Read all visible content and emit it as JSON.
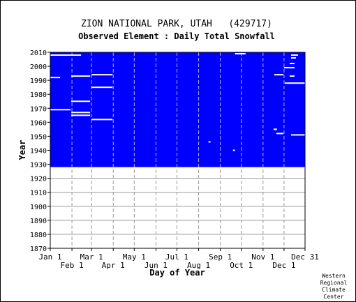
{
  "chart_data": {
    "type": "heatmap",
    "title": "ZION NATIONAL PARK, UTAH   (429717)",
    "subtitle": "Observed Element : Daily Total Snowfall",
    "xlabel": "Day of Year",
    "ylabel": "Year",
    "credit": [
      "Western",
      "Regional",
      "Climate",
      "Center"
    ],
    "xlim": [
      1,
      365
    ],
    "ylim": [
      1870,
      2010
    ],
    "x_ticks": [
      {
        "label": "Jan 1",
        "day": 1,
        "row": 0
      },
      {
        "label": "Feb 1",
        "day": 32,
        "row": 1
      },
      {
        "label": "Mar 1",
        "day": 60,
        "row": 0
      },
      {
        "label": "Apr 1",
        "day": 91,
        "row": 1
      },
      {
        "label": "May 1",
        "day": 121,
        "row": 0
      },
      {
        "label": "Jun 1",
        "day": 152,
        "row": 1
      },
      {
        "label": "Jul 1",
        "day": 182,
        "row": 0
      },
      {
        "label": "Aug 1",
        "day": 213,
        "row": 1
      },
      {
        "label": "Sep 1",
        "day": 244,
        "row": 0
      },
      {
        "label": "Oct 1",
        "day": 274,
        "row": 1
      },
      {
        "label": "Nov 1",
        "day": 305,
        "row": 0
      },
      {
        "label": "Dec 1",
        "day": 335,
        "row": 1
      },
      {
        "label": "Dec 31",
        "day": 365,
        "row": 0
      }
    ],
    "y_ticks": [
      1870,
      1880,
      1890,
      1900,
      1910,
      1920,
      1930,
      1940,
      1950,
      1960,
      1970,
      1980,
      1990,
      2000,
      2010
    ],
    "data_coverage_years": [
      1928,
      2010
    ],
    "colors": {
      "data_present": "#0000ff",
      "missing": "#ffffff",
      "grid": "#999999",
      "month_divider": "#ffffff"
    },
    "missing_segments": [
      {
        "year": 2008,
        "start_day": 1,
        "end_day": 45
      },
      {
        "year": 2009,
        "start_day": 265,
        "end_day": 280
      },
      {
        "year": 2008,
        "start_day": 345,
        "end_day": 355
      },
      {
        "year": 2006,
        "start_day": 345,
        "end_day": 352
      },
      {
        "year": 2002,
        "start_day": 343,
        "end_day": 350
      },
      {
        "year": 1999,
        "start_day": 335,
        "end_day": 350
      },
      {
        "year": 1993,
        "start_day": 31,
        "end_day": 58
      },
      {
        "year": 1994,
        "start_day": 60,
        "end_day": 90
      },
      {
        "year": 1992,
        "start_day": 1,
        "end_day": 15
      },
      {
        "year": 1994,
        "start_day": 321,
        "end_day": 334
      },
      {
        "year": 1993,
        "start_day": 343,
        "end_day": 350
      },
      {
        "year": 1988,
        "start_day": 336,
        "end_day": 365
      },
      {
        "year": 1985,
        "start_day": 60,
        "end_day": 90
      },
      {
        "year": 1975,
        "start_day": 31,
        "end_day": 58
      },
      {
        "year": 1969,
        "start_day": 1,
        "end_day": 30
      },
      {
        "year": 1967,
        "start_day": 31,
        "end_day": 58
      },
      {
        "year": 1965,
        "start_day": 31,
        "end_day": 58
      },
      {
        "year": 1962,
        "start_day": 60,
        "end_day": 90
      },
      {
        "year": 1955,
        "start_day": 320,
        "end_day": 325
      },
      {
        "year": 1952,
        "start_day": 324,
        "end_day": 334
      },
      {
        "year": 1951,
        "start_day": 345,
        "end_day": 365
      },
      {
        "year": 1940,
        "start_day": 262,
        "end_day": 265
      },
      {
        "year": 1946,
        "start_day": 227,
        "end_day": 230
      }
    ]
  }
}
